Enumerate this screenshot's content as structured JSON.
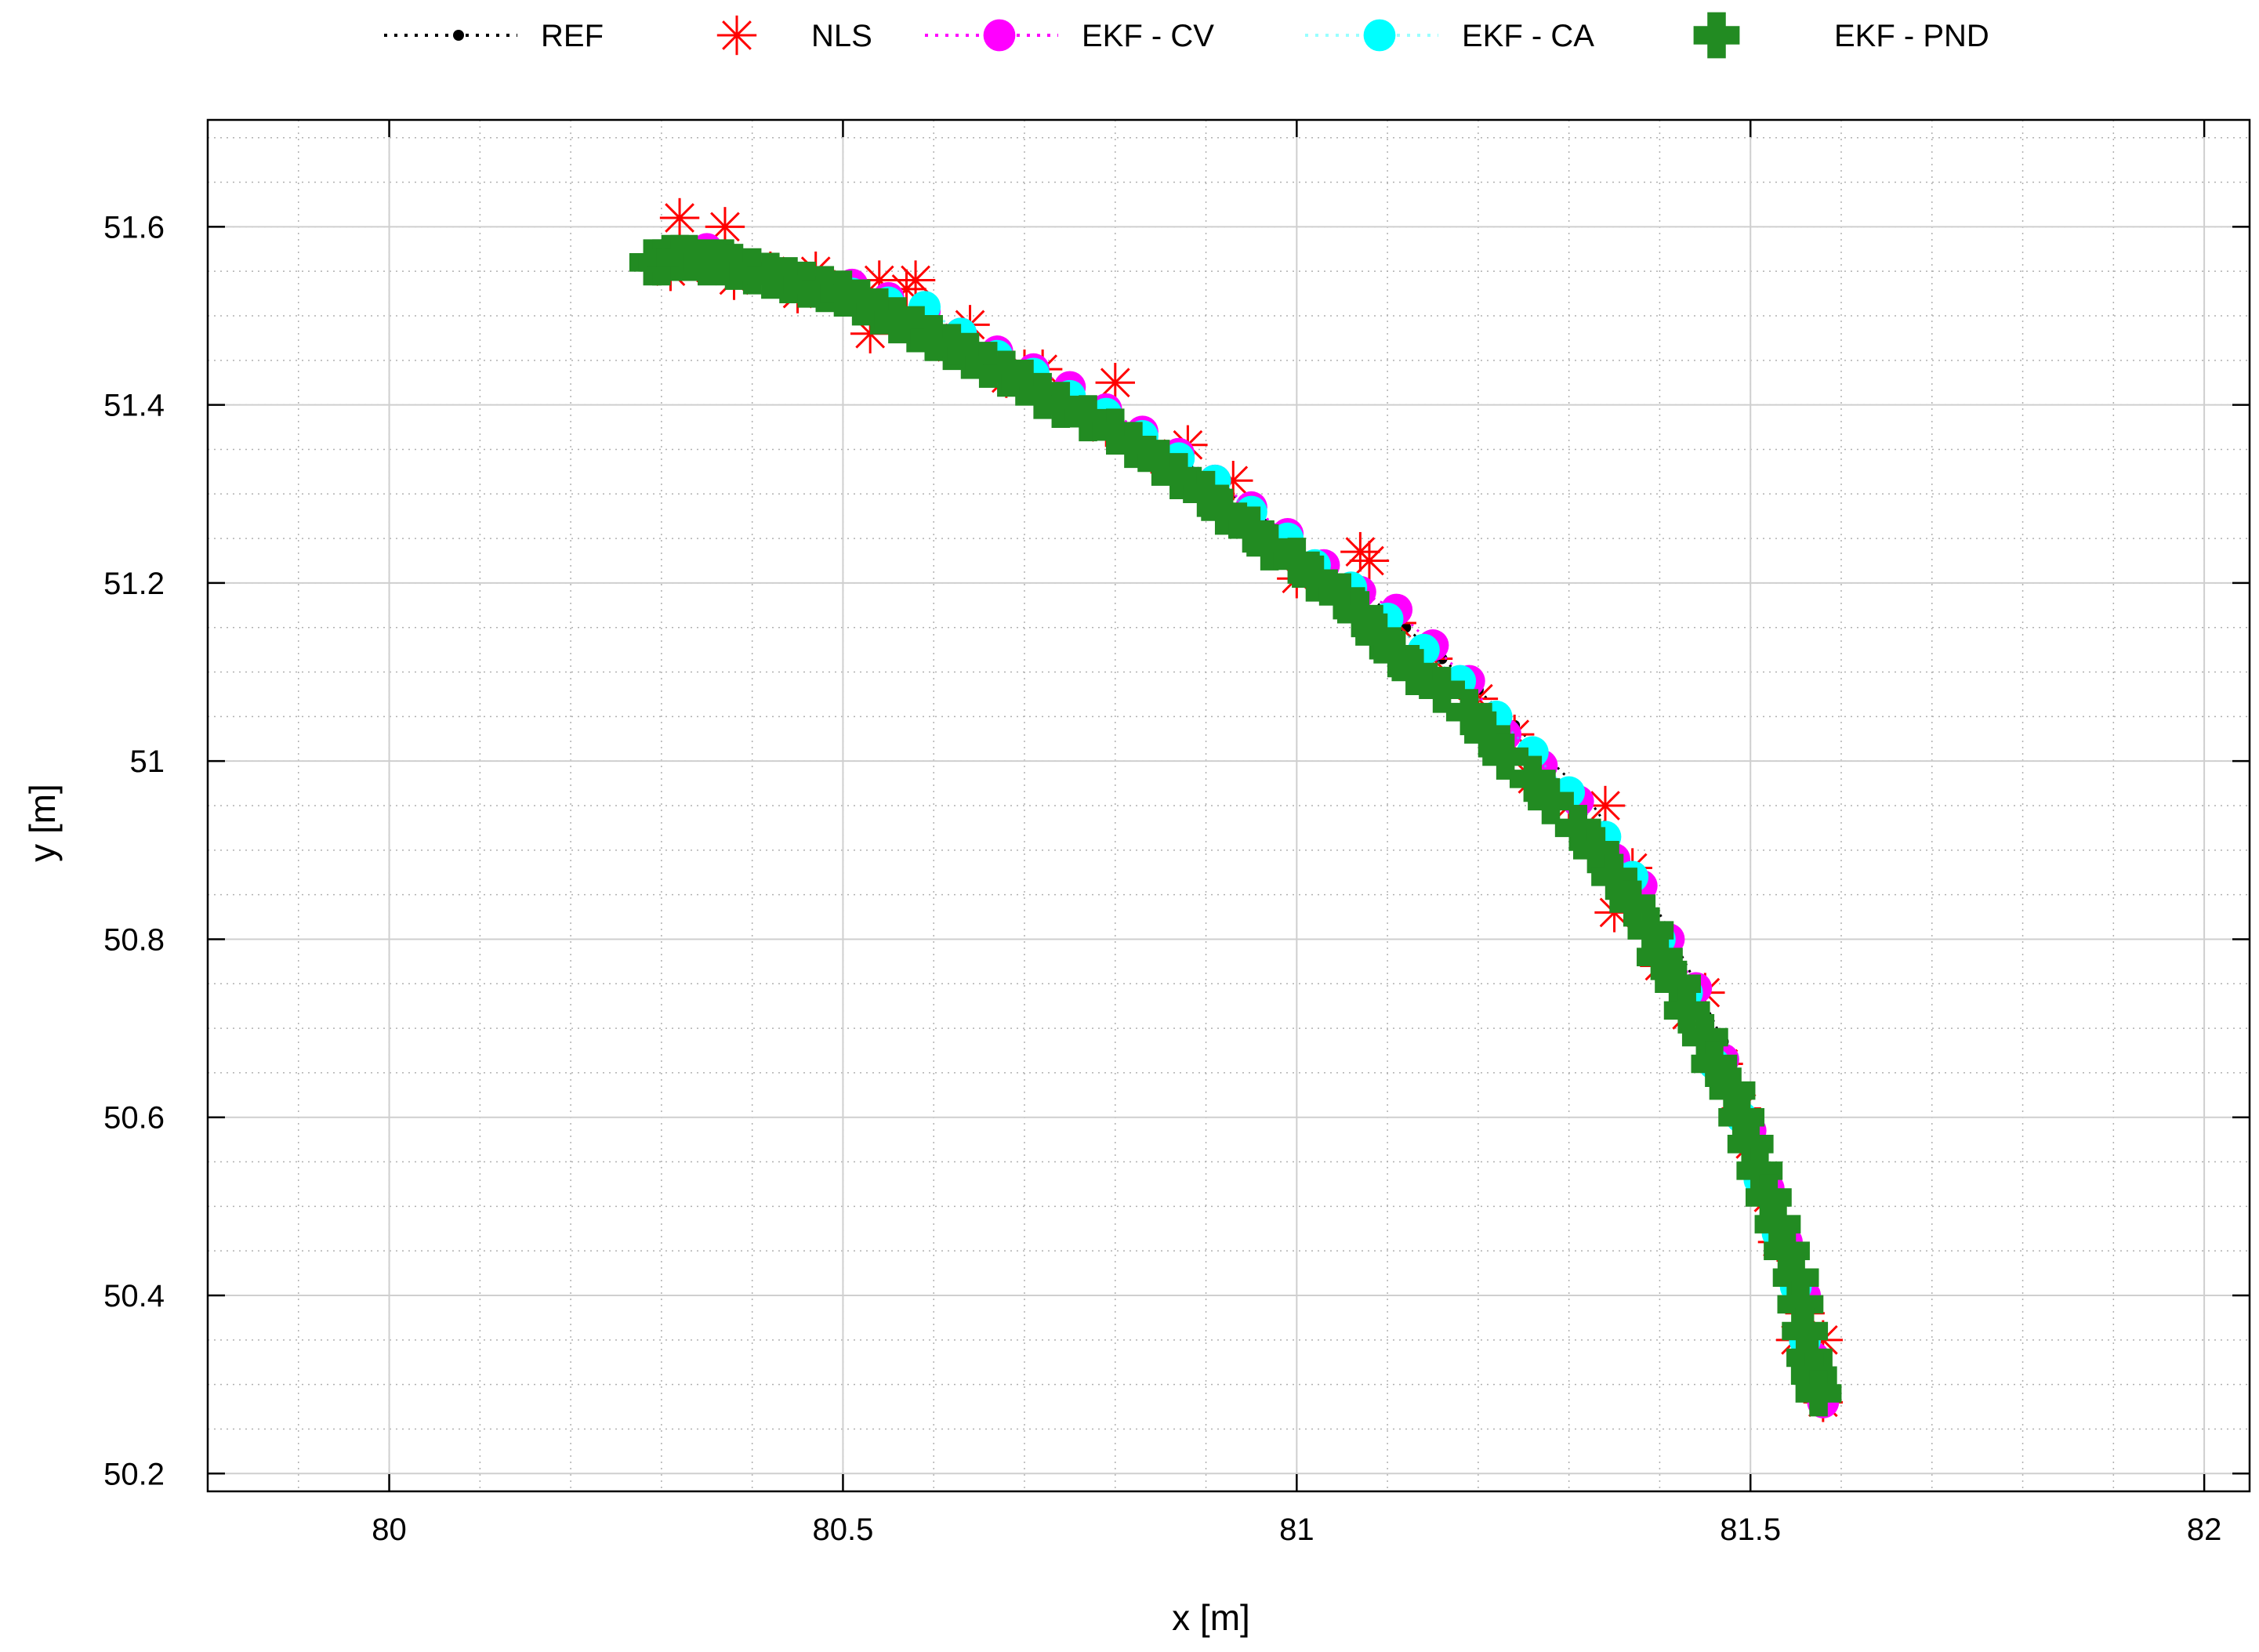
{
  "chart_data": {
    "type": "scatter",
    "title": "",
    "xlabel": "x [m]",
    "ylabel": "y [m]",
    "xlim": [
      79.8,
      82.05
    ],
    "ylim": [
      50.18,
      51.72
    ],
    "xticks": [
      80,
      80.5,
      81,
      81.5,
      82
    ],
    "xtick_labels": [
      "80",
      "80.5",
      "81",
      "81.5",
      "82"
    ],
    "yticks": [
      50.2,
      50.4,
      50.6,
      50.8,
      51,
      51.2,
      51.4,
      51.6
    ],
    "ytick_labels": [
      "50.2",
      "50.4",
      "50.6",
      "50.8",
      "51",
      "51.2",
      "51.4",
      "51.6"
    ],
    "grid": true,
    "minor_grid": true,
    "legend_position": "top-outside",
    "series": [
      {
        "name": "REF",
        "marker": "dot",
        "line": "dotted",
        "color": "#000000",
        "x": [
          80.3,
          80.33,
          80.36,
          80.4,
          80.44,
          80.48,
          80.52,
          80.56,
          80.6,
          80.64,
          80.68,
          80.72,
          80.76,
          80.8,
          80.84,
          80.88,
          80.92,
          80.96,
          81.0,
          81.04,
          81.08,
          81.12,
          81.16,
          81.2,
          81.24,
          81.28,
          81.32,
          81.35,
          81.38,
          81.41,
          81.44,
          81.47,
          81.49,
          81.51,
          81.53,
          81.55,
          81.56,
          81.57,
          81.575
        ],
        "y": [
          51.56,
          51.565,
          51.56,
          51.55,
          51.54,
          51.53,
          51.515,
          51.5,
          51.485,
          51.465,
          51.445,
          51.425,
          51.405,
          51.38,
          51.355,
          51.33,
          51.305,
          51.275,
          51.245,
          51.215,
          51.185,
          51.15,
          51.115,
          51.08,
          51.04,
          51.0,
          50.96,
          50.915,
          50.865,
          50.81,
          50.75,
          50.685,
          50.62,
          50.555,
          50.49,
          50.42,
          50.37,
          50.32,
          50.29
        ]
      },
      {
        "name": "NLS",
        "marker": "asterisk",
        "line": "none",
        "color": "#ff0000",
        "x": [
          80.31,
          80.32,
          80.34,
          80.37,
          80.38,
          80.42,
          80.45,
          80.47,
          80.53,
          80.54,
          80.57,
          80.58,
          80.62,
          80.64,
          80.68,
          80.7,
          80.72,
          80.79,
          80.8,
          80.84,
          80.88,
          80.91,
          80.93,
          81.0,
          81.07,
          81.08,
          81.11,
          81.15,
          81.2,
          81.24,
          81.26,
          81.3,
          81.34,
          81.35,
          81.37,
          81.4,
          81.43,
          81.45,
          81.47,
          81.49,
          81.5,
          81.52,
          81.53,
          81.55,
          81.56,
          81.58,
          81.58
        ],
        "y": [
          51.55,
          51.61,
          51.56,
          51.6,
          51.54,
          51.55,
          51.525,
          51.55,
          51.48,
          51.54,
          51.53,
          51.54,
          51.465,
          51.49,
          51.43,
          51.44,
          51.44,
          51.375,
          51.425,
          51.345,
          51.355,
          51.3,
          51.315,
          51.205,
          51.235,
          51.225,
          51.155,
          51.115,
          51.07,
          51.03,
          50.98,
          50.95,
          50.95,
          50.83,
          50.88,
          50.77,
          50.715,
          50.74,
          50.66,
          50.61,
          50.57,
          50.51,
          50.46,
          50.35,
          50.38,
          50.35,
          50.28
        ]
      },
      {
        "name": "EKF - CV",
        "marker": "circle",
        "line": "dotted",
        "color": "#ff00ff",
        "x": [
          80.31,
          80.35,
          80.39,
          80.43,
          80.47,
          80.51,
          80.55,
          80.59,
          80.63,
          80.67,
          80.71,
          80.75,
          80.79,
          80.83,
          80.87,
          80.91,
          80.95,
          80.99,
          81.03,
          81.07,
          81.11,
          81.15,
          81.19,
          81.23,
          81.27,
          81.31,
          81.35,
          81.38,
          81.41,
          81.44,
          81.47,
          81.5,
          81.52,
          81.54,
          81.56,
          81.57,
          81.58
        ],
        "y": [
          51.57,
          51.575,
          51.555,
          51.545,
          51.535,
          51.535,
          51.52,
          51.505,
          51.48,
          51.46,
          51.44,
          51.42,
          51.395,
          51.37,
          51.345,
          51.315,
          51.285,
          51.255,
          51.22,
          51.19,
          51.17,
          51.13,
          51.09,
          51.03,
          50.995,
          50.955,
          50.89,
          50.86,
          50.8,
          50.745,
          50.665,
          50.585,
          50.52,
          50.46,
          50.4,
          50.33,
          50.28
        ]
      },
      {
        "name": "EKF - CA",
        "marker": "circle",
        "line": "dotted",
        "color": "#00ffff",
        "x": [
          80.31,
          80.35,
          80.39,
          80.43,
          80.47,
          80.51,
          80.55,
          80.59,
          80.63,
          80.67,
          80.71,
          80.75,
          80.79,
          80.83,
          80.87,
          80.91,
          80.95,
          80.99,
          81.02,
          81.06,
          81.1,
          81.14,
          81.18,
          81.22,
          81.26,
          81.3,
          81.34,
          81.37,
          81.4,
          81.43,
          81.46,
          81.49,
          81.51,
          81.53,
          81.55,
          81.56,
          81.57
        ],
        "y": [
          51.565,
          51.56,
          51.55,
          51.54,
          51.53,
          51.525,
          51.515,
          51.51,
          51.48,
          51.455,
          51.435,
          51.41,
          51.39,
          51.365,
          51.34,
          51.315,
          51.28,
          51.25,
          51.22,
          51.195,
          51.16,
          51.125,
          51.09,
          51.05,
          51.01,
          50.965,
          50.915,
          50.87,
          50.8,
          50.74,
          50.66,
          50.6,
          50.53,
          50.47,
          50.41,
          50.35,
          50.3
        ]
      },
      {
        "name": "EKF - PND",
        "marker": "plus",
        "line": "none",
        "color": "#228b22",
        "x": [
          80.29,
          80.3,
          80.31,
          80.32,
          80.33,
          80.35,
          80.37,
          80.38,
          80.4,
          80.42,
          80.44,
          80.46,
          80.48,
          80.5,
          80.52,
          80.54,
          80.56,
          80.58,
          80.6,
          80.62,
          80.64,
          80.66,
          80.68,
          80.7,
          80.72,
          80.74,
          80.77,
          80.8,
          80.82,
          80.85,
          80.87,
          80.9,
          80.92,
          80.95,
          80.97,
          81.0,
          81.02,
          81.05,
          81.07,
          81.09,
          81.11,
          81.13,
          81.16,
          81.19,
          81.21,
          81.23,
          81.26,
          81.28,
          81.31,
          81.33,
          81.35,
          81.37,
          81.39,
          81.4,
          81.42,
          81.43,
          81.45,
          81.46,
          81.48,
          81.49,
          81.5,
          81.51,
          81.52,
          81.53,
          81.54,
          81.55,
          81.555,
          81.56,
          81.565,
          81.57,
          81.575
        ],
        "y": [
          51.56,
          51.56,
          51.565,
          51.565,
          51.565,
          51.56,
          51.56,
          51.555,
          51.55,
          51.545,
          51.54,
          51.535,
          51.53,
          51.525,
          51.515,
          51.505,
          51.495,
          51.485,
          51.475,
          51.465,
          51.455,
          51.445,
          51.435,
          51.425,
          51.41,
          51.4,
          51.385,
          51.37,
          51.355,
          51.335,
          51.32,
          51.3,
          51.28,
          51.26,
          51.24,
          51.225,
          51.205,
          51.185,
          51.165,
          51.14,
          51.12,
          51.1,
          51.08,
          51.055,
          51.03,
          51.005,
          50.98,
          50.955,
          50.925,
          50.9,
          50.87,
          50.84,
          50.81,
          50.78,
          50.75,
          50.72,
          50.69,
          50.66,
          50.63,
          50.6,
          50.57,
          50.54,
          50.51,
          50.48,
          50.45,
          50.42,
          50.39,
          50.36,
          50.33,
          50.31,
          50.29
        ]
      }
    ]
  }
}
